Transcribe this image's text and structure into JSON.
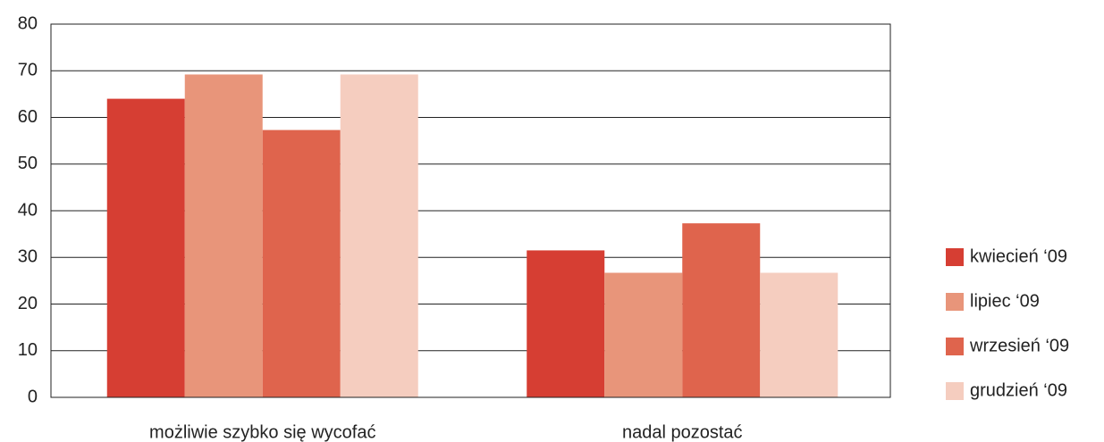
{
  "chart_data": {
    "type": "bar",
    "categories": [
      "możliwie szybko się wycofać",
      "nadal pozostać"
    ],
    "series": [
      {
        "name": "kwiecień ‘09",
        "color": "#d63e33",
        "values": [
          64,
          31.5
        ]
      },
      {
        "name": "lipiec ‘09",
        "color": "#e8957a",
        "values": [
          69.2,
          26.7
        ]
      },
      {
        "name": "wrzesień ‘09",
        "color": "#df644d",
        "values": [
          57.3,
          37.3
        ]
      },
      {
        "name": "grudzień ‘09",
        "color": "#f5cdbf",
        "values": [
          69.2,
          26.7
        ]
      }
    ],
    "ylim": [
      0,
      80
    ],
    "yticks": [
      0,
      10,
      20,
      30,
      40,
      50,
      60,
      70,
      80
    ],
    "grid": true,
    "legend": "right"
  }
}
